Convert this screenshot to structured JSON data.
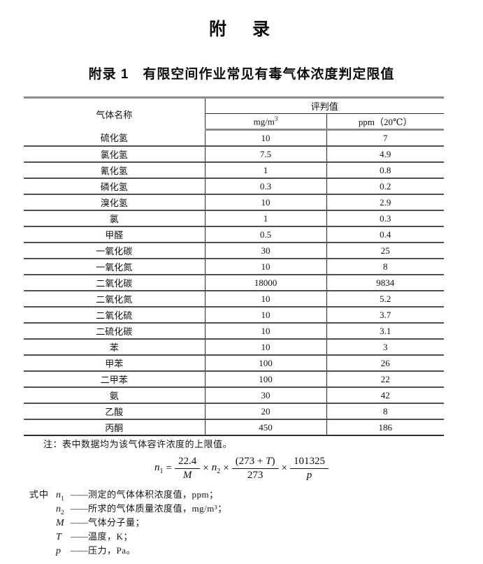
{
  "page": {
    "title": "附　录",
    "subtitle": "附录 1　有限空间作业常见有毒气体浓度判定限值"
  },
  "table": {
    "header": {
      "gas_name": "气体名称",
      "judgment_value": "评判值",
      "col_mg": "mg/m",
      "col_mg_sup": "3",
      "col_ppm": "ppm（20℃）"
    },
    "rows": [
      {
        "name": "硫化氢",
        "mg": "10",
        "ppm": "7"
      },
      {
        "name": "氯化氢",
        "mg": "7.5",
        "ppm": "4.9"
      },
      {
        "name": "氰化氢",
        "mg": "1",
        "ppm": "0.8"
      },
      {
        "name": "磷化氢",
        "mg": "0.3",
        "ppm": "0.2"
      },
      {
        "name": "溴化氢",
        "mg": "10",
        "ppm": "2.9"
      },
      {
        "name": "氯",
        "mg": "1",
        "ppm": "0.3"
      },
      {
        "name": "甲醛",
        "mg": "0.5",
        "ppm": "0.4"
      },
      {
        "name": "一氧化碳",
        "mg": "30",
        "ppm": "25"
      },
      {
        "name": "一氧化氮",
        "mg": "10",
        "ppm": "8"
      },
      {
        "name": "二氧化碳",
        "mg": "18000",
        "ppm": "9834"
      },
      {
        "name": "二氧化氮",
        "mg": "10",
        "ppm": "5.2"
      },
      {
        "name": "二氧化硫",
        "mg": "10",
        "ppm": "3.7"
      },
      {
        "name": "二硫化碳",
        "mg": "10",
        "ppm": "3.1"
      },
      {
        "name": "苯",
        "mg": "10",
        "ppm": "3"
      },
      {
        "name": "甲苯",
        "mg": "100",
        "ppm": "26"
      },
      {
        "name": "二甲苯",
        "mg": "100",
        "ppm": "22"
      },
      {
        "name": "氨",
        "mg": "30",
        "ppm": "42"
      },
      {
        "name": "乙酸",
        "mg": "20",
        "ppm": "8"
      },
      {
        "name": "丙酮",
        "mg": "450",
        "ppm": "186"
      }
    ]
  },
  "note": "注：表中数据均为该气体容许浓度的上限值。",
  "formula": {
    "var1": "n",
    "var1_sub": "1",
    "equals": "=",
    "times": "×",
    "frac1": {
      "num": "22.4",
      "den": "M"
    },
    "var2": "n",
    "var2_sub": "2",
    "frac2": {
      "num_pre": "(273 + ",
      "num_var": "T",
      "num_post": ")",
      "den": "273"
    },
    "frac3": {
      "num": "101325",
      "den": "p"
    }
  },
  "legend": {
    "prefix": "式中",
    "items": [
      {
        "var": "n",
        "sub": "1",
        "dash": "——",
        "desc": "测定的气体体积浓度值，ppm；"
      },
      {
        "var": "n",
        "sub": "2",
        "dash": "——",
        "desc": "所求的气体质量浓度值，mg/m³；"
      },
      {
        "var": "M",
        "sub": "",
        "dash": "——",
        "desc": "气体分子量；"
      },
      {
        "var": "T",
        "sub": "",
        "dash": "——",
        "desc": "温度，K；"
      },
      {
        "var": "p",
        "sub": "",
        "dash": "——",
        "desc": "压力，Pa。"
      }
    ]
  }
}
